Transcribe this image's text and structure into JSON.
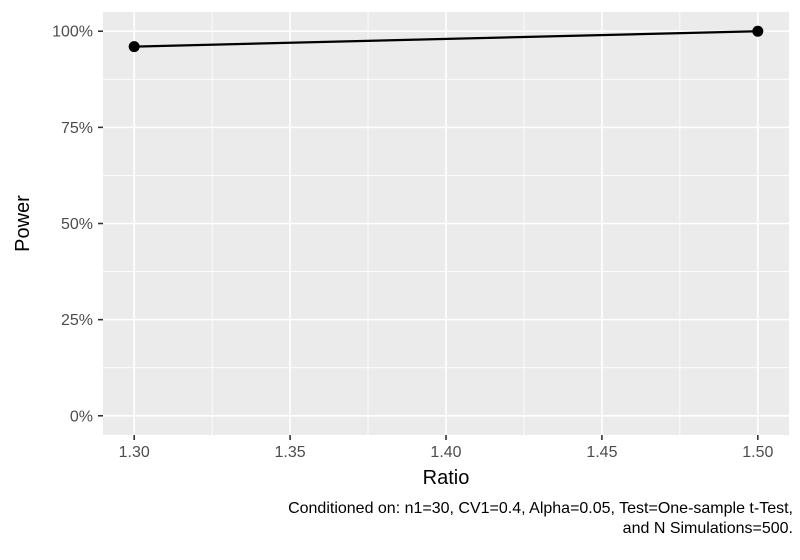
{
  "chart_data": {
    "type": "line",
    "title": "",
    "xlabel": "Ratio",
    "ylabel": "Power",
    "xlim": [
      1.29,
      1.51
    ],
    "ylim": [
      -5,
      105
    ],
    "y_units": "percent",
    "grid": true,
    "legend": "none",
    "x_tick_values": [
      1.3,
      1.35,
      1.4,
      1.45,
      1.5
    ],
    "x_tick_labels": [
      "1.30",
      "1.35",
      "1.40",
      "1.45",
      "1.50"
    ],
    "y_tick_values": [
      0,
      25,
      50,
      75,
      100
    ],
    "y_tick_labels": [
      "0%",
      "25%",
      "50%",
      "75%",
      "100%"
    ],
    "x_minor_ticks": [
      1.325,
      1.375,
      1.425,
      1.475
    ],
    "y_minor_ticks": [
      12.5,
      37.5,
      62.5,
      87.5
    ],
    "series": [
      {
        "name": "Power",
        "x": [
          1.3,
          1.5
        ],
        "y": [
          96,
          100
        ]
      }
    ],
    "caption": {
      "line1": "Conditioned on: n1=30, CV1=0.4, Alpha=0.05, Test=One-sample t-Test,",
      "line2": "and N Simulations=500."
    },
    "colors": {
      "background": "#FFFFFF",
      "panel_bg": "#EBEBEB",
      "grid": "#FFFFFF",
      "line": "#000000",
      "point": "#000000",
      "tick_label": "#4D4D4D",
      "tick_mark": "#333333",
      "axis_title": "#000000",
      "caption": "#000000"
    }
  }
}
